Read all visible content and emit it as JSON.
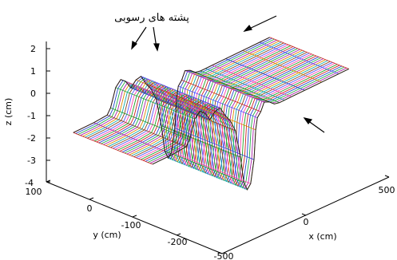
{
  "chart_data": {
    "type": "surface3d",
    "title": "",
    "xlabel": "x (cm)",
    "ylabel": "y (cm)",
    "zlabel": "z (cm)",
    "x_ticks": [
      "500",
      "0",
      "-500"
    ],
    "y_ticks": [
      "100",
      "0",
      "-100",
      "-200"
    ],
    "z_ticks": [
      "2",
      "1",
      "0",
      "-1",
      "-2",
      "-3",
      "-4"
    ],
    "zlim": [
      -4,
      2.5
    ],
    "grid": false,
    "annotations": [
      {
        "name": "sediment-ridges",
        "text": "پشته های رسوبی"
      }
    ],
    "profile": {
      "x": [
        -600,
        -480,
        -400,
        -380,
        -350,
        -320,
        -290,
        -260,
        -230,
        -200,
        -170,
        -140,
        -110,
        -80,
        -60,
        -40,
        -20,
        0,
        10,
        20,
        40,
        60,
        90,
        120,
        150,
        180,
        220,
        300,
        400,
        500,
        560
      ],
      "z": [
        0,
        0,
        0.05,
        0.3,
        1.1,
        1.35,
        1.15,
        0.75,
        1.0,
        1.05,
        0.6,
        0.25,
        -0.3,
        -1.6,
        -2.8,
        -3.2,
        -3.0,
        -2.0,
        -0.7,
        -0.2,
        0,
        0.35,
        0.25,
        0.05,
        0,
        0,
        0,
        0,
        0,
        0,
        0
      ]
    },
    "y_profiles": [
      100,
      -230
    ]
  }
}
